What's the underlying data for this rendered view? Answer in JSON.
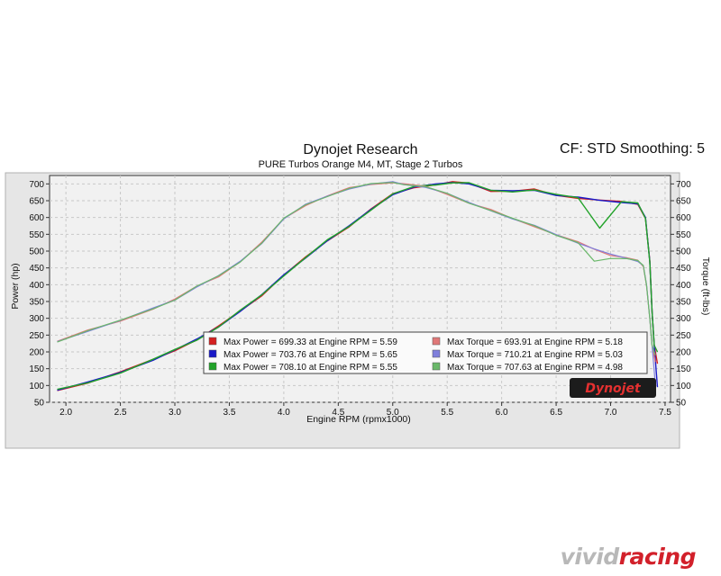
{
  "header": {
    "title": "Dynojet Research",
    "subtitle": "PURE Turbos Orange M4, MT, Stage 2 Turbos",
    "cf_label": "CF: STD",
    "smoothing_label": "Smoothing: 5"
  },
  "watermark": {
    "logo_text": "Dynojet",
    "site_part1": "vivid",
    "site_part2": "racing"
  },
  "colors": {
    "run1": "#d42020",
    "run2": "#1a1ac8",
    "run3": "#22a32a",
    "torque1": "#e07878",
    "torque2": "#7f7fdc",
    "torque3": "#6ab86a",
    "grid": "#c8c8c8",
    "plot_bg": "#f1f1f1",
    "frame_bg": "#e6e6e6"
  },
  "chart_data": {
    "type": "line",
    "title": "Dynojet Research",
    "subtitle": "PURE Turbos Orange M4, MT, Stage 2 Turbos",
    "xlabel": "Engine RPM (rpmx1000)",
    "ylabel_left": "Power (hp)",
    "ylabel_right": "Torque (ft-lbs)",
    "xlim": [
      1.85,
      7.55
    ],
    "ylim": [
      50,
      725
    ],
    "x_ticks": [
      "2.0",
      "2.5",
      "3.0",
      "3.5",
      "4.0",
      "4.5",
      "5.0",
      "5.5",
      "6.0",
      "6.5",
      "7.0",
      "7.5"
    ],
    "y_ticks": [
      "50",
      "100",
      "150",
      "200",
      "250",
      "300",
      "350",
      "400",
      "450",
      "500",
      "550",
      "600",
      "650",
      "700"
    ],
    "grid": true,
    "legend_placement": "bottom-center",
    "legend": [
      {
        "text": "Max Power = 699.33 at Engine RPM = 5.59",
        "color_key": "run1",
        "column": 0
      },
      {
        "text": "Max Power = 703.76 at Engine RPM = 5.65",
        "color_key": "run2",
        "column": 0
      },
      {
        "text": "Max Power = 708.10 at Engine RPM = 5.55",
        "color_key": "run3",
        "column": 0
      },
      {
        "text": "Max Torque = 693.91 at Engine RPM = 5.18",
        "color_key": "torque1",
        "column": 1
      },
      {
        "text": "Max Torque = 710.21 at Engine RPM = 5.03",
        "color_key": "torque2",
        "column": 1
      },
      {
        "text": "Max Torque = 707.63 at Engine RPM = 4.98",
        "color_key": "torque3",
        "column": 1
      }
    ],
    "power_base": {
      "x": [
        1.92,
        2.2,
        2.5,
        2.8,
        3.0,
        3.2,
        3.4,
        3.6,
        3.8,
        4.0,
        4.2,
        4.4,
        4.6,
        4.8,
        5.0,
        5.2,
        5.4,
        5.55,
        5.7,
        5.9,
        6.1,
        6.3,
        6.5,
        6.7,
        6.9,
        7.1,
        7.25,
        7.32,
        7.36,
        7.38,
        7.4,
        7.43
      ],
      "y": [
        85,
        110,
        140,
        175,
        205,
        238,
        275,
        320,
        370,
        430,
        480,
        530,
        575,
        625,
        668,
        690,
        700,
        705,
        700,
        680,
        680,
        682,
        665,
        660,
        652,
        645,
        640,
        600,
        470,
        320,
        220,
        170
      ]
    },
    "torque_base": {
      "x": [
        1.92,
        2.2,
        2.5,
        2.8,
        3.0,
        3.2,
        3.4,
        3.6,
        3.8,
        4.0,
        4.2,
        4.4,
        4.6,
        4.8,
        5.0,
        5.1,
        5.3,
        5.5,
        5.7,
        5.9,
        6.1,
        6.3,
        6.5,
        6.7,
        6.85,
        7.0,
        7.15,
        7.25,
        7.3,
        7.33,
        7.36,
        7.38,
        7.41
      ],
      "y": [
        232,
        262,
        292,
        330,
        356,
        393,
        425,
        470,
        525,
        595,
        638,
        665,
        686,
        698,
        706,
        700,
        690,
        670,
        645,
        622,
        595,
        575,
        550,
        525,
        505,
        490,
        480,
        470,
        455,
        400,
        300,
        220,
        170
      ]
    },
    "series": [
      {
        "kind": "power",
        "color_key": "run1",
        "dy": -3,
        "dip_x": null,
        "dip_depth": 0,
        "tail_y": 165
      },
      {
        "kind": "power",
        "color_key": "run2",
        "dy": 1,
        "dip_x": null,
        "dip_depth": 0,
        "tail_y": 95
      },
      {
        "kind": "power",
        "color_key": "run3",
        "dy": 4,
        "dip_x": 6.9,
        "dip_depth": 80,
        "tail_y": 200
      },
      {
        "kind": "torque",
        "color_key": "torque1",
        "dy": -3,
        "dip_x": null,
        "dip_depth": 0,
        "tail_y": 170
      },
      {
        "kind": "torque",
        "color_key": "torque2",
        "dy": 2,
        "dip_x": null,
        "dip_depth": 0,
        "tail_y": 105
      },
      {
        "kind": "torque",
        "color_key": "torque3",
        "dy": 3,
        "dip_x": 6.9,
        "dip_depth": 65,
        "tail_y": 190
      }
    ]
  }
}
